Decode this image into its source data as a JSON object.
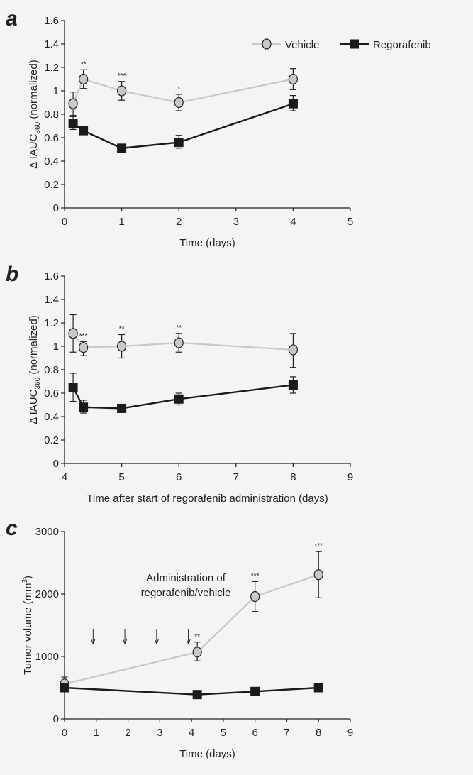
{
  "colors": {
    "background": "#f4f4f4",
    "vehicle": "#c8c8c8",
    "regorafenib": "#1a1a1a",
    "axis": "#222222"
  },
  "legend": {
    "placement": "top-right",
    "entries": [
      "Vehicle",
      "Regorafenib"
    ],
    "markers": [
      "circle-gray",
      "square-black"
    ]
  },
  "chart_data": [
    {
      "panel_label": "a",
      "type": "line",
      "xlabel": "Time (days)",
      "ylabel_main": "Δ IAUC",
      "ylabel_sub": "360",
      "ylabel_suffix": " (normalized)",
      "xlim": [
        0,
        5
      ],
      "ylim": [
        0,
        1.6
      ],
      "xticks": [
        "0",
        "1",
        "2",
        "3",
        "4",
        "5"
      ],
      "yticks": [
        "0",
        "0.2",
        "0.4",
        "0.6",
        "0.8",
        "1",
        "1.2",
        "1.4",
        "1.6"
      ],
      "grid": false,
      "show_legend": true,
      "series": [
        {
          "name": "Vehicle",
          "x": [
            0.15,
            0.33,
            1,
            2,
            4
          ],
          "y": [
            0.89,
            1.1,
            1.0,
            0.9,
            1.1
          ],
          "err_low": [
            0.79,
            1.02,
            0.92,
            0.83,
            1.01
          ],
          "err_high": [
            0.99,
            1.18,
            1.08,
            0.97,
            1.19
          ]
        },
        {
          "name": "Regorafenib",
          "x": [
            0.15,
            0.33,
            1,
            2,
            4
          ],
          "y": [
            0.72,
            0.66,
            0.51,
            0.56,
            0.89
          ],
          "err_low": [
            0.67,
            0.63,
            0.49,
            0.51,
            0.83
          ],
          "err_high": [
            0.78,
            0.69,
            0.53,
            0.62,
            0.96
          ]
        }
      ],
      "annotations": [
        {
          "x": 0.33,
          "y": 1.18,
          "text": "**"
        },
        {
          "x": 1,
          "y": 1.08,
          "text": "***"
        },
        {
          "x": 2,
          "y": 0.97,
          "text": "*"
        }
      ]
    },
    {
      "panel_label": "b",
      "type": "line",
      "xlabel": "Time after start of regorafenib administration (days)",
      "ylabel_main": "Δ IAUC",
      "ylabel_sub": "360",
      "ylabel_suffix": " (normalized)",
      "xlim": [
        4,
        9
      ],
      "ylim": [
        0,
        1.6
      ],
      "xticks": [
        "4",
        "5",
        "6",
        "7",
        "8",
        "9"
      ],
      "yticks": [
        "0",
        "0.2",
        "0.4",
        "0.6",
        "0.8",
        "1",
        "1.2",
        "1.4",
        "1.6"
      ],
      "grid": false,
      "show_legend": false,
      "series": [
        {
          "name": "Vehicle",
          "x": [
            4.15,
            4.33,
            5,
            6,
            8
          ],
          "y": [
            1.11,
            0.99,
            1.0,
            1.03,
            0.97
          ],
          "err_low": [
            0.95,
            0.92,
            0.9,
            0.95,
            0.82
          ],
          "err_high": [
            1.27,
            1.04,
            1.1,
            1.11,
            1.11
          ]
        },
        {
          "name": "Regorafenib",
          "x": [
            4.15,
            4.33,
            5,
            6,
            8
          ],
          "y": [
            0.65,
            0.48,
            0.47,
            0.55,
            0.67
          ],
          "err_low": [
            0.53,
            0.43,
            0.45,
            0.5,
            0.6
          ],
          "err_high": [
            0.77,
            0.54,
            0.5,
            0.6,
            0.74
          ]
        }
      ],
      "annotations": [
        {
          "x": 4.33,
          "y": 1.04,
          "text": "***"
        },
        {
          "x": 5,
          "y": 1.1,
          "text": "**"
        },
        {
          "x": 6,
          "y": 1.11,
          "text": "**"
        }
      ]
    },
    {
      "panel_label": "c",
      "type": "line",
      "xlabel": "Time (days)",
      "ylabel_main": "Tumor volume (mm",
      "ylabel_sup": "3",
      "ylabel_suffix": ")",
      "xlim": [
        0,
        9
      ],
      "ylim": [
        0,
        3000
      ],
      "xticks": [
        "0",
        "1",
        "2",
        "3",
        "4",
        "5",
        "6",
        "7",
        "8",
        "9"
      ],
      "yticks": [
        "0",
        "1000",
        "2000",
        "3000"
      ],
      "grid": false,
      "show_legend": false,
      "series": [
        {
          "name": "Vehicle",
          "x": [
            0,
            4.18,
            6,
            8
          ],
          "y": [
            560,
            1070,
            1960,
            2310
          ],
          "err_low": [
            450,
            930,
            1720,
            1940
          ],
          "err_high": [
            670,
            1230,
            2200,
            2680
          ]
        },
        {
          "name": "Regorafenib",
          "x": [
            0,
            4.18,
            6,
            8
          ],
          "y": [
            500,
            390,
            440,
            500
          ],
          "err_low": [
            480,
            370,
            420,
            480
          ],
          "err_high": [
            520,
            410,
            460,
            520
          ]
        }
      ],
      "annotations": [
        {
          "x": 4.18,
          "y": 1230,
          "text": "**"
        },
        {
          "x": 6,
          "y": 2200,
          "text": "***"
        },
        {
          "x": 8,
          "y": 2680,
          "text": "***"
        }
      ],
      "dosing_arrows_x": [
        0.9,
        1.9,
        2.9,
        3.9
      ],
      "dosing_text": [
        "Administration of",
        "regorafenib/vehicle"
      ]
    }
  ]
}
